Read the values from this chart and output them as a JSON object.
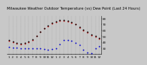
{
  "title": "Milwaukee Weather Outdoor Temperature (vs) Dew Point (Last 24 Hours)",
  "title_fontsize": 3.8,
  "background_color": "#c8c8c8",
  "plot_bg_color": "#c8c8c8",
  "grid_color": "#888888",
  "yticks": [
    30,
    40,
    50,
    60,
    70,
    80
  ],
  "ylim": [
    20,
    85
  ],
  "xlim": [
    0,
    23
  ],
  "xtick_labels": [
    "1",
    "2",
    "3",
    "4",
    "5",
    "6",
    "7",
    "8",
    "9",
    "10",
    "11",
    "12",
    "1",
    "2",
    "3",
    "4",
    "5",
    "6",
    "7",
    "8",
    "9",
    "10",
    "11",
    "12"
  ],
  "red_temp": [
    42,
    40,
    38,
    37,
    38,
    40,
    44,
    50,
    57,
    63,
    67,
    72,
    74,
    76,
    76,
    75,
    73,
    70,
    65,
    60,
    56,
    52,
    49,
    46
  ],
  "blue_dew": [
    32,
    31,
    31,
    30,
    30,
    30,
    30,
    30,
    29,
    28,
    27,
    28,
    29,
    37,
    43,
    44,
    42,
    39,
    35,
    27,
    22,
    21,
    30,
    33
  ],
  "black_dots": [
    43,
    41,
    39,
    38,
    39,
    41,
    45,
    51,
    58,
    64,
    68,
    73,
    75,
    77,
    77,
    76,
    74,
    71,
    66,
    61,
    57,
    53,
    50,
    47
  ],
  "red_color": "#cc0000",
  "blue_color": "#0000cc",
  "black_color": "#000000",
  "dot_size": 2.0,
  "tick_fontsize": 3.0,
  "ytick_fontsize": 3.2
}
